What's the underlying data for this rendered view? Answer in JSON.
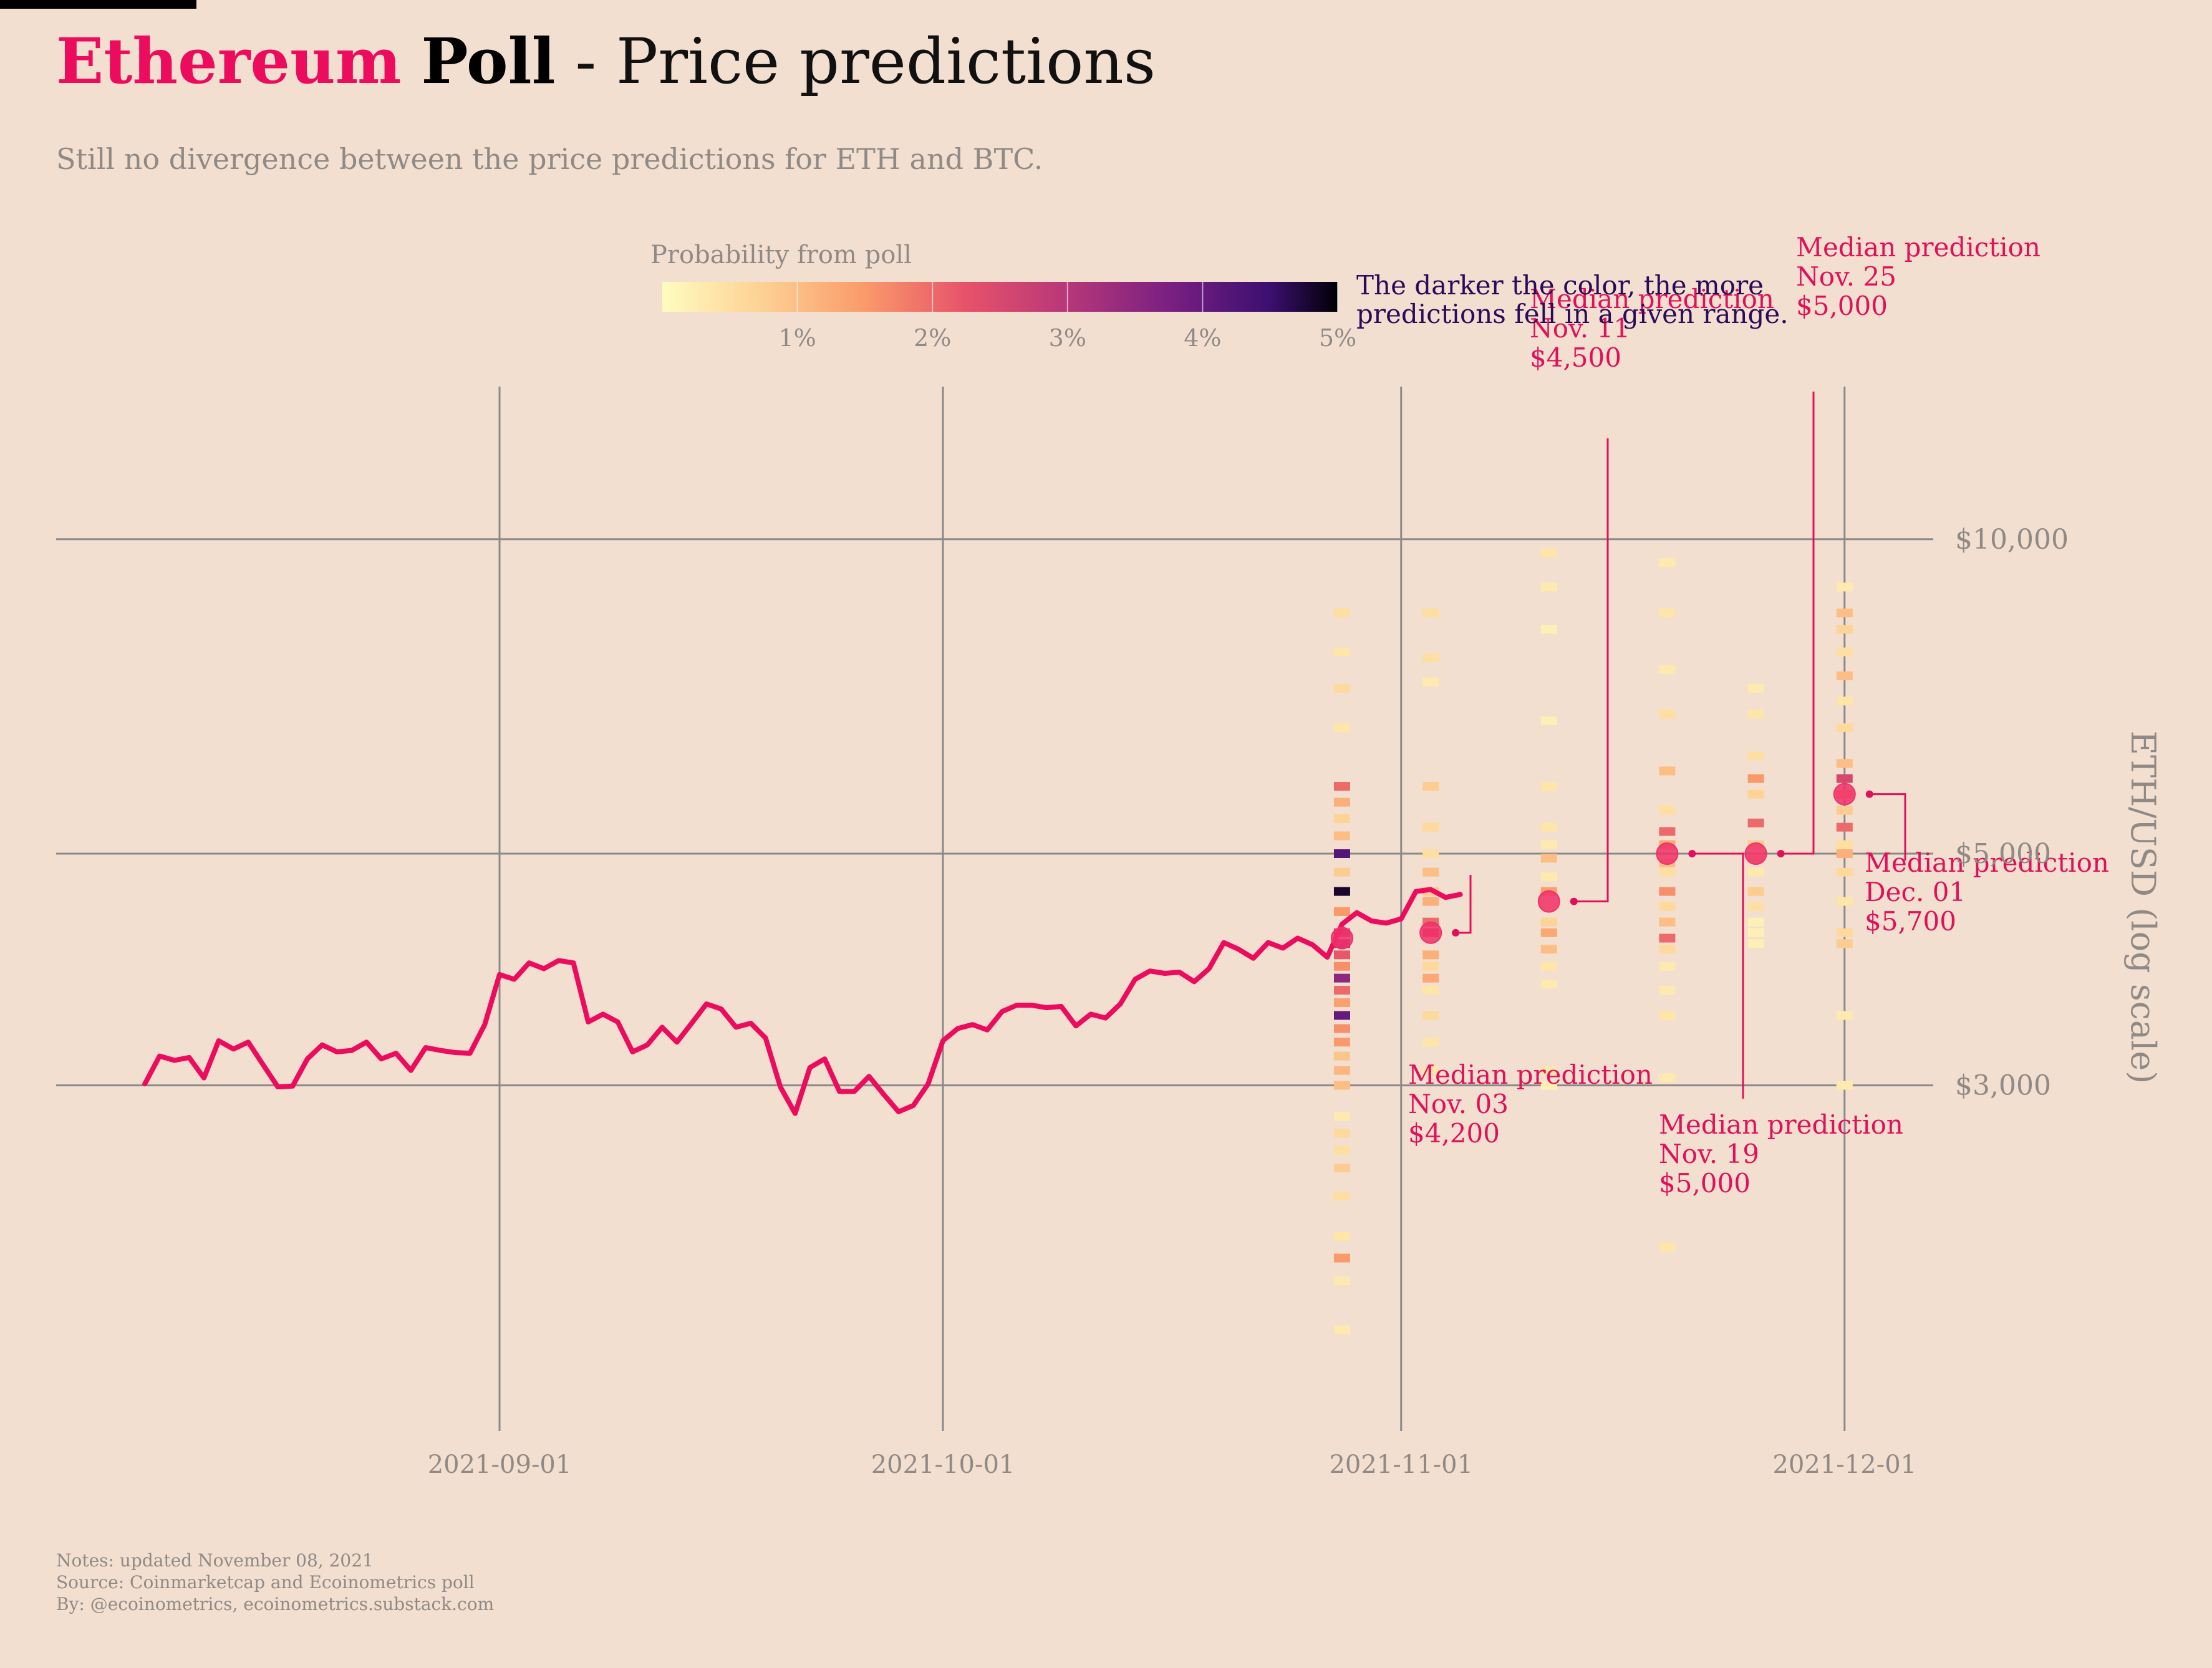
{
  "header": {
    "title_eth": "Ethereum",
    "title_poll": "Poll",
    "title_rest": " - Price predictions",
    "subtitle": "Still no divergence between the price predictions for ETH and BTC."
  },
  "footer": {
    "notes": "Notes: updated November 08, 2021",
    "source": "Source: Coinmarketcap and Ecoinometrics poll",
    "by": "By: @ecoinometrics, ecoinometrics.substack.com"
  },
  "colors": {
    "background": "#f2dfcf",
    "price_line": "#ec0b5d",
    "median_marker": "#f0306a",
    "annotation": "#e0105a",
    "grid": "#8a8a8a",
    "muted_text": "#8f8a86",
    "legend_note": "#2a0a5a"
  },
  "chart_data": {
    "type": "line",
    "ylabel": "ETH/USD (log scale)",
    "yscale": "log",
    "ylim": [
      1400,
      14000
    ],
    "xlim": [
      "2021-08-02",
      "2021-12-07"
    ],
    "x_ticks": [
      "2021-09-01",
      "2021-10-01",
      "2021-11-01",
      "2021-12-01"
    ],
    "y_ticks": [
      {
        "value": 3000,
        "label": "$3,000"
      },
      {
        "value": 5000,
        "label": "$5,000"
      },
      {
        "value": 10000,
        "label": "$10,000"
      }
    ],
    "grid": true,
    "series": [
      {
        "start": "2021-08-08",
        "values": [
          3010,
          3200,
          3170,
          3190,
          3050,
          3310,
          3250,
          3300,
          3140,
          2990,
          2995,
          3180,
          3280,
          3230,
          3240,
          3300,
          3180,
          3220,
          3100,
          3260,
          3240,
          3225,
          3220,
          3430,
          3830,
          3790,
          3930,
          3880,
          3950,
          3930,
          3450,
          3510,
          3450,
          3230,
          3280,
          3410,
          3300,
          3440,
          3590,
          3550,
          3410,
          3440,
          3330,
          2990,
          2820,
          3120,
          3180,
          2960,
          2960,
          3060,
          2940,
          2830,
          2870,
          3010,
          3310,
          3400,
          3430,
          3390,
          3530,
          3580,
          3580,
          3560,
          3570,
          3420,
          3510,
          3480,
          3590,
          3790,
          3860,
          3840,
          3850,
          3770,
          3880,
          4110,
          4050,
          3970,
          4110,
          4060,
          4150,
          4090,
          3980,
          4280,
          4390,
          4310,
          4290,
          4330,
          4600,
          4620,
          4540,
          4570
        ]
      }
    ],
    "predictions": {
      "colorbar": {
        "title": "Probability from poll",
        "ticks": [
          "1%",
          "2%",
          "3%",
          "4%",
          "5%"
        ],
        "note_line1": "The darker the color, the more",
        "note_line2": "predictions fell in a given range."
      },
      "columns": [
        {
          "date": "2021-10-28",
          "bins": [
            [
              8500,
              0.5
            ],
            [
              7800,
              0.4
            ],
            [
              7200,
              0.6
            ],
            [
              6600,
              0.4
            ],
            [
              5800,
              2.0
            ],
            [
              5600,
              1.2
            ],
            [
              5400,
              0.7
            ],
            [
              5200,
              1.0
            ],
            [
              5000,
              4.2
            ],
            [
              4800,
              0.8
            ],
            [
              4600,
              4.8
            ],
            [
              4400,
              1.5
            ],
            [
              4200,
              2.6
            ],
            [
              4100,
              3.0
            ],
            [
              4000,
              2.2
            ],
            [
              3900,
              1.6
            ],
            [
              3800,
              3.5
            ],
            [
              3700,
              2.0
            ],
            [
              3600,
              1.4
            ],
            [
              3500,
              4.0
            ],
            [
              3400,
              1.6
            ],
            [
              3300,
              1.5
            ],
            [
              3200,
              0.9
            ],
            [
              3100,
              1.1
            ],
            [
              3000,
              1.0
            ],
            [
              2800,
              0.3
            ],
            [
              2700,
              0.6
            ],
            [
              2600,
              0.5
            ],
            [
              2500,
              0.8
            ],
            [
              2350,
              0.5
            ],
            [
              2150,
              0.4
            ],
            [
              2050,
              1.5
            ],
            [
              1950,
              0.3
            ],
            [
              1750,
              0.3
            ]
          ]
        },
        {
          "date": "2021-11-03",
          "bins": [
            [
              8500,
              0.5
            ],
            [
              7700,
              0.5
            ],
            [
              7300,
              0.3
            ],
            [
              5800,
              0.8
            ],
            [
              5300,
              0.6
            ],
            [
              5000,
              0.5
            ],
            [
              4800,
              1.0
            ],
            [
              4600,
              0.8
            ],
            [
              4500,
              1.2
            ],
            [
              4300,
              2.0
            ],
            [
              4200,
              2.3
            ],
            [
              4000,
              1.2
            ],
            [
              3900,
              0.6
            ],
            [
              3800,
              1.3
            ],
            [
              3700,
              0.4
            ],
            [
              3500,
              0.6
            ],
            [
              3300,
              0.4
            ],
            [
              3100,
              0.4
            ]
          ]
        },
        {
          "date": "2021-11-11",
          "bins": [
            [
              9700,
              0.4
            ],
            [
              9000,
              0.3
            ],
            [
              8200,
              0.2
            ],
            [
              6700,
              0.2
            ],
            [
              5800,
              0.4
            ],
            [
              5300,
              0.4
            ],
            [
              5100,
              0.3
            ],
            [
              4950,
              1.0
            ],
            [
              4750,
              0.3
            ],
            [
              4600,
              1.4
            ],
            [
              4450,
              0.5
            ],
            [
              4300,
              0.7
            ],
            [
              4200,
              1.3
            ],
            [
              4050,
              1.0
            ],
            [
              3900,
              0.4
            ],
            [
              3750,
              0.3
            ],
            [
              3100,
              0.4
            ],
            [
              3000,
              0.2
            ]
          ]
        },
        {
          "date": "2021-11-19",
          "bins": [
            [
              9500,
              0.3
            ],
            [
              8500,
              0.4
            ],
            [
              7500,
              0.3
            ],
            [
              6800,
              0.5
            ],
            [
              6000,
              1.0
            ],
            [
              5500,
              0.5
            ],
            [
              5250,
              2.0
            ],
            [
              5100,
              1.3
            ],
            [
              4900,
              1.0
            ],
            [
              4800,
              0.5
            ],
            [
              4600,
              1.6
            ],
            [
              4450,
              0.6
            ],
            [
              4300,
              1.0
            ],
            [
              4150,
              2.0
            ],
            [
              4050,
              0.6
            ],
            [
              3900,
              0.3
            ],
            [
              3700,
              0.3
            ],
            [
              3500,
              0.4
            ],
            [
              3050,
              0.3
            ],
            [
              2100,
              0.4
            ]
          ]
        },
        {
          "date": "2021-11-25",
          "bins": [
            [
              7200,
              0.3
            ],
            [
              6800,
              0.4
            ],
            [
              6200,
              0.5
            ],
            [
              5900,
              1.5
            ],
            [
              5700,
              0.7
            ],
            [
              5350,
              2.0
            ],
            [
              5100,
              0.8
            ],
            [
              4950,
              1.0
            ],
            [
              4800,
              0.3
            ],
            [
              4600,
              0.8
            ],
            [
              4450,
              0.5
            ],
            [
              4300,
              0.2
            ],
            [
              4200,
              0.2
            ],
            [
              4100,
              0.2
            ]
          ]
        },
        {
          "date": "2021-12-01",
          "bins": [
            [
              9000,
              0.3
            ],
            [
              8500,
              1.0
            ],
            [
              8200,
              0.7
            ],
            [
              7800,
              0.5
            ],
            [
              7400,
              1.0
            ],
            [
              7000,
              0.4
            ],
            [
              6600,
              0.6
            ],
            [
              6100,
              1.0
            ],
            [
              5900,
              2.5
            ],
            [
              5700,
              1.4
            ],
            [
              5500,
              0.8
            ],
            [
              5300,
              2.0
            ],
            [
              5100,
              0.5
            ],
            [
              5000,
              1.2
            ],
            [
              4800,
              0.6
            ],
            [
              4500,
              0.4
            ],
            [
              4200,
              0.6
            ],
            [
              4100,
              0.8
            ],
            [
              3500,
              0.3
            ],
            [
              3000,
              0.3
            ]
          ]
        }
      ],
      "medians": [
        {
          "date": "2021-10-28",
          "value": 4150
        },
        {
          "date": "2021-11-03",
          "value": 4200,
          "label": [
            "Median prediction",
            "Nov. 03",
            "$4,200"
          ],
          "label_anchor": "below"
        },
        {
          "date": "2021-11-11",
          "value": 4500,
          "label": [
            "Median prediction",
            "Nov. 11",
            "$4,500"
          ],
          "label_anchor": "above"
        },
        {
          "date": "2021-11-19",
          "value": 5000,
          "label": [
            "Median prediction",
            "Nov. 19",
            "$5,000"
          ],
          "label_anchor": "below"
        },
        {
          "date": "2021-11-25",
          "value": 5000,
          "label": [
            "Median prediction",
            "Nov. 25",
            "$5,000"
          ],
          "label_anchor": "above"
        },
        {
          "date": "2021-12-01",
          "value": 5700,
          "label": [
            "Median prediction",
            "Dec. 01",
            "$5,700"
          ],
          "label_anchor": "below"
        }
      ]
    }
  }
}
